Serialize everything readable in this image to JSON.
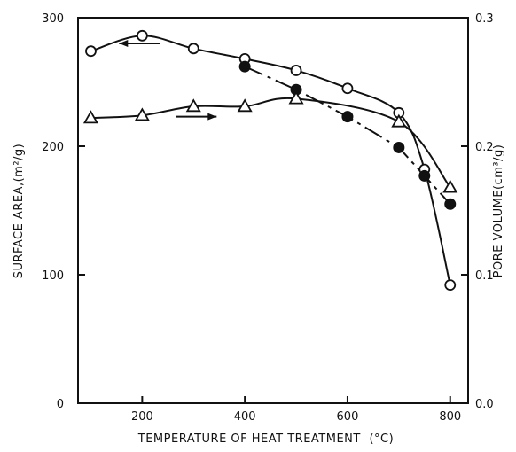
{
  "chart_data": {
    "type": "line",
    "title": "",
    "xlabel": "TEMPERATURE OF HEAT TREATMENT",
    "xunit": "(°C)",
    "ylabel": "SURFACE AREA,(m²/g)",
    "y2label": "PORE VOLUME(cm³/g)",
    "xlim": [
      75,
      835
    ],
    "ylim": [
      0,
      300
    ],
    "y2lim": [
      0.0,
      0.3
    ],
    "xticks": [
      "200",
      "400",
      "600",
      "800"
    ],
    "yticks": [
      "0",
      "100",
      "200",
      "300"
    ],
    "y2ticks": [
      "0.0",
      "0.1",
      "0.2",
      "0.3"
    ],
    "grid": false,
    "series": [
      {
        "marker": "open-circle",
        "axis": "left",
        "line": "solid",
        "x": [
          100,
          200,
          300,
          400,
          500,
          600,
          700,
          750,
          800
        ],
        "y": [
          274,
          286,
          276,
          268,
          259,
          245,
          226,
          182,
          92
        ]
      },
      {
        "marker": "filled-circle",
        "axis": "left",
        "line": "dashed",
        "x": [
          400,
          500,
          600,
          700,
          750,
          800
        ],
        "y": [
          262,
          244,
          223,
          199,
          177,
          155
        ]
      },
      {
        "marker": "open-triangle",
        "axis": "right",
        "line": "solid",
        "x": [
          100,
          200,
          300,
          400,
          500,
          700,
          800
        ],
        "y": [
          0.222,
          0.224,
          0.231,
          0.231,
          0.237,
          0.219,
          0.168
        ]
      }
    ],
    "annotations": [
      {
        "kind": "arrow",
        "direction": "left",
        "points_to_axis": "left"
      },
      {
        "kind": "arrow",
        "direction": "right",
        "points_to_axis": "right"
      }
    ]
  }
}
